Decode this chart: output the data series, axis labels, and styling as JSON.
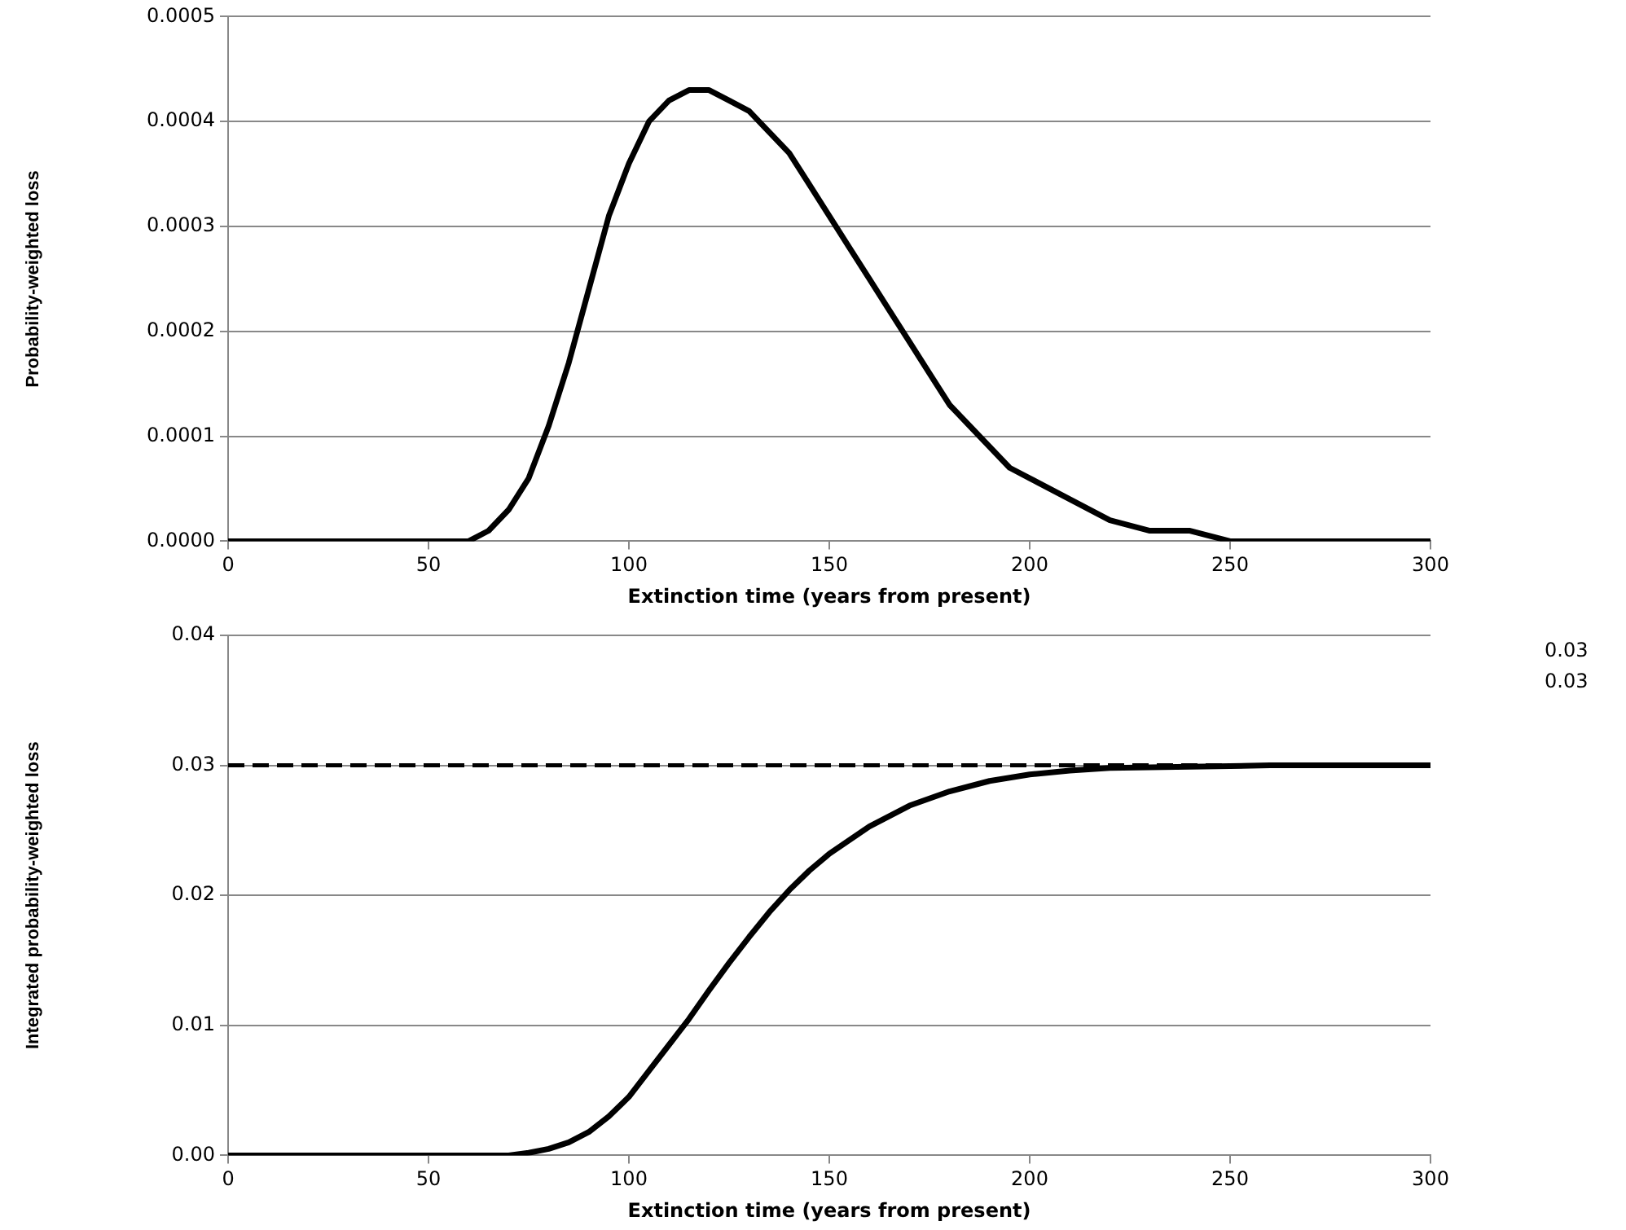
{
  "chart_data": [
    {
      "type": "line",
      "xlabel": "Extinction time (years from present)",
      "ylabel": "Probability-weighted loss",
      "grid": "y",
      "legend": false,
      "marker": "none",
      "line_style": "solid",
      "xlim": [
        0,
        300
      ],
      "xticks": [
        0,
        50,
        100,
        150,
        200,
        250,
        300
      ],
      "ylim": [
        0,
        0.0005
      ],
      "yticks": [
        {
          "value": 0,
          "label": "0.0000"
        },
        {
          "value": 0.0001,
          "label": "0.0001"
        },
        {
          "value": 0.0002,
          "label": "0.0002"
        },
        {
          "value": 0.0003,
          "label": "0.0003"
        },
        {
          "value": 0.0004,
          "label": "0.0004"
        },
        {
          "value": 0.0005,
          "label": "0.0005"
        }
      ],
      "series": [
        {
          "color": "#000000",
          "x": [
            0,
            50,
            55,
            60,
            65,
            70,
            75,
            80,
            85,
            90,
            95,
            100,
            105,
            110,
            115,
            120,
            125,
            130,
            135,
            140,
            145,
            150,
            155,
            160,
            165,
            170,
            175,
            180,
            185,
            190,
            195,
            200,
            210,
            220,
            230,
            240,
            250,
            270,
            300
          ],
          "values": [
            0,
            0,
            0,
            0,
            1e-05,
            3e-05,
            6e-05,
            0.00011,
            0.00017,
            0.00024,
            0.00031,
            0.00036,
            0.0004,
            0.00042,
            0.00043,
            0.00043,
            0.00042,
            0.00041,
            0.00039,
            0.00037,
            0.00034,
            0.00031,
            0.00028,
            0.00025,
            0.00022,
            0.00019,
            0.00016,
            0.00013,
            0.00011,
            9e-05,
            7e-05,
            6e-05,
            4e-05,
            2e-05,
            1e-05,
            1e-05,
            0,
            0,
            0
          ]
        }
      ]
    },
    {
      "type": "line",
      "xlabel": "Extinction time (years from present)",
      "ylabel": "Integrated probability-weighted loss",
      "grid": "y",
      "legend": false,
      "marker": "none",
      "line_style": "solid",
      "xlim": [
        0,
        300
      ],
      "xticks": [
        0,
        50,
        100,
        150,
        200,
        250,
        300
      ],
      "ylim": [
        0,
        0.04
      ],
      "yticks": [
        {
          "value": 0,
          "label": "0.00"
        },
        {
          "value": 0.01,
          "label": "0.01"
        },
        {
          "value": 0.02,
          "label": "0.02"
        },
        {
          "value": 0.03,
          "label": "0.03"
        },
        {
          "value": 0.04,
          "label": "0.04"
        }
      ],
      "ref_lines": [
        {
          "axis": "y",
          "value": 0.03,
          "color": "#000000",
          "line_style": "dashed"
        }
      ],
      "annotations": [
        "0.03",
        "0.03"
      ],
      "series": [
        {
          "color": "#000000",
          "x": [
            0,
            70,
            75,
            80,
            85,
            90,
            95,
            100,
            105,
            110,
            115,
            120,
            125,
            130,
            135,
            140,
            145,
            150,
            160,
            170,
            180,
            190,
            200,
            210,
            220,
            240,
            260,
            300
          ],
          "values": [
            0,
            0,
            0.0002,
            0.0005,
            0.001,
            0.0018,
            0.003,
            0.0045,
            0.0065,
            0.0085,
            0.0105,
            0.0127,
            0.0148,
            0.0168,
            0.0187,
            0.0204,
            0.0219,
            0.0232,
            0.0253,
            0.0269,
            0.028,
            0.0288,
            0.0293,
            0.0296,
            0.0298,
            0.0299,
            0.03,
            0.03
          ]
        }
      ]
    }
  ]
}
